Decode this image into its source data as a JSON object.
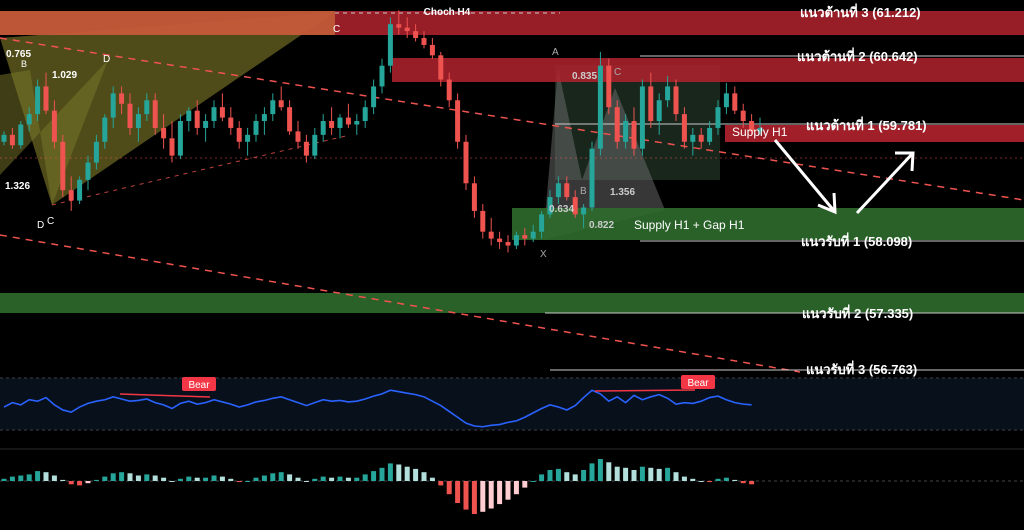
{
  "chart_data": {
    "type": "candlestick",
    "title": "Choch H4",
    "price_axis_range": [
      56.1,
      61.45
    ],
    "levels": [
      {
        "label": "แนวต้านที่ 3 (61.212)",
        "price": 61.212,
        "kind": "resistance"
      },
      {
        "label": "แนวต้านที่ 2 (60.642)",
        "price": 60.642,
        "kind": "resistance"
      },
      {
        "label": "แนวต้านที่ 1 (59.781)",
        "price": 59.781,
        "kind": "resistance"
      },
      {
        "label": "แนวรับที่ 1 (58.098)",
        "price": 58.098,
        "kind": "support"
      },
      {
        "label": "แนวรับที่ 2 (57.335)",
        "price": 57.335,
        "kind": "support"
      },
      {
        "label": "แนวรับที่ 3 (56.763)",
        "price": 56.763,
        "kind": "support"
      }
    ],
    "zones": [
      {
        "label": "Supply H1",
        "kind": "supply",
        "price_low": 59.62,
        "price_high": 59.84
      },
      {
        "label": "Supply H1 + Gap H1",
        "kind": "demand",
        "price_low": 58.16,
        "price_high": 58.5
      }
    ],
    "pattern_labels": [
      "0.765",
      "1.029",
      "1.326",
      "0.835",
      "1.356",
      "0.634",
      "0.822"
    ],
    "pattern_points": [
      "B",
      "D",
      "C",
      "D",
      "C",
      "A",
      "C",
      "B",
      "X"
    ],
    "candles": [
      [
        59.4,
        59.55,
        59.35,
        59.5
      ],
      [
        59.5,
        59.6,
        59.3,
        59.35
      ],
      [
        59.35,
        59.7,
        59.3,
        59.65
      ],
      [
        59.65,
        59.9,
        59.55,
        59.8
      ],
      [
        59.8,
        60.3,
        59.7,
        60.2
      ],
      [
        60.2,
        60.4,
        59.8,
        59.85
      ],
      [
        59.85,
        60.0,
        59.3,
        59.4
      ],
      [
        59.4,
        59.5,
        58.6,
        58.7
      ],
      [
        58.7,
        58.9,
        58.4,
        58.55
      ],
      [
        58.55,
        58.9,
        58.5,
        58.85
      ],
      [
        58.85,
        59.2,
        58.7,
        59.1
      ],
      [
        59.1,
        59.5,
        59.0,
        59.4
      ],
      [
        59.4,
        59.8,
        59.3,
        59.75
      ],
      [
        59.75,
        60.2,
        59.6,
        60.1
      ],
      [
        60.1,
        60.2,
        59.8,
        59.95
      ],
      [
        59.95,
        60.1,
        59.5,
        59.6
      ],
      [
        59.6,
        59.9,
        59.4,
        59.8
      ],
      [
        59.8,
        60.1,
        59.7,
        60.0
      ],
      [
        60.0,
        60.1,
        59.5,
        59.6
      ],
      [
        59.6,
        59.8,
        59.3,
        59.45
      ],
      [
        59.45,
        59.7,
        59.1,
        59.2
      ],
      [
        59.2,
        59.8,
        59.15,
        59.7
      ],
      [
        59.7,
        59.9,
        59.55,
        59.85
      ],
      [
        59.85,
        60.0,
        59.5,
        59.6
      ],
      [
        59.6,
        59.8,
        59.4,
        59.7
      ],
      [
        59.7,
        60.0,
        59.6,
        59.9
      ],
      [
        59.9,
        60.1,
        59.7,
        59.75
      ],
      [
        59.75,
        59.9,
        59.5,
        59.6
      ],
      [
        59.6,
        59.7,
        59.3,
        59.4
      ],
      [
        59.4,
        59.6,
        59.2,
        59.5
      ],
      [
        59.5,
        59.8,
        59.4,
        59.7
      ],
      [
        59.7,
        59.9,
        59.5,
        59.8
      ],
      [
        59.8,
        60.1,
        59.7,
        60.0
      ],
      [
        60.0,
        60.2,
        59.85,
        59.9
      ],
      [
        59.9,
        60.0,
        59.5,
        59.55
      ],
      [
        59.55,
        59.7,
        59.3,
        59.4
      ],
      [
        59.4,
        59.5,
        59.1,
        59.2
      ],
      [
        59.2,
        59.6,
        59.15,
        59.5
      ],
      [
        59.5,
        59.8,
        59.4,
        59.7
      ],
      [
        59.7,
        59.9,
        59.5,
        59.6
      ],
      [
        59.6,
        59.8,
        59.45,
        59.75
      ],
      [
        59.75,
        59.95,
        59.6,
        59.65
      ],
      [
        59.65,
        59.8,
        59.5,
        59.7
      ],
      [
        59.7,
        60.0,
        59.6,
        59.9
      ],
      [
        59.9,
        60.3,
        59.8,
        60.2
      ],
      [
        60.2,
        60.6,
        60.1,
        60.5
      ],
      [
        60.5,
        61.2,
        60.4,
        61.1
      ],
      [
        61.1,
        61.3,
        60.95,
        61.05
      ],
      [
        61.05,
        61.2,
        60.9,
        61.0
      ],
      [
        61.0,
        61.1,
        60.85,
        60.9
      ],
      [
        60.9,
        61.0,
        60.75,
        60.8
      ],
      [
        60.8,
        60.9,
        60.6,
        60.65
      ],
      [
        60.65,
        60.7,
        60.2,
        60.3
      ],
      [
        60.3,
        60.4,
        59.9,
        60.0
      ],
      [
        60.0,
        60.1,
        59.3,
        59.4
      ],
      [
        59.4,
        59.5,
        58.7,
        58.8
      ],
      [
        58.8,
        58.9,
        58.3,
        58.4
      ],
      [
        58.4,
        58.5,
        58.0,
        58.1
      ],
      [
        58.1,
        58.3,
        57.9,
        58.0
      ],
      [
        58.0,
        58.1,
        57.85,
        57.95
      ],
      [
        57.95,
        58.05,
        57.8,
        57.9
      ],
      [
        57.9,
        58.1,
        57.85,
        58.05
      ],
      [
        58.05,
        58.15,
        57.9,
        58.0
      ],
      [
        58.0,
        58.2,
        57.95,
        58.1
      ],
      [
        58.1,
        58.4,
        58.0,
        58.35
      ],
      [
        58.35,
        58.7,
        58.3,
        58.6
      ],
      [
        58.6,
        58.9,
        58.5,
        58.8
      ],
      [
        58.8,
        58.9,
        58.55,
        58.6
      ],
      [
        58.6,
        58.7,
        58.3,
        58.35
      ],
      [
        58.35,
        58.5,
        58.15,
        58.45
      ],
      [
        58.45,
        59.4,
        58.4,
        59.3
      ],
      [
        59.3,
        60.7,
        59.2,
        60.5
      ],
      [
        60.5,
        60.6,
        59.8,
        59.9
      ],
      [
        59.9,
        60.0,
        59.3,
        59.4
      ],
      [
        59.4,
        59.8,
        59.3,
        59.7
      ],
      [
        59.7,
        59.9,
        59.2,
        59.3
      ],
      [
        59.3,
        60.3,
        59.2,
        60.2
      ],
      [
        60.2,
        60.4,
        59.6,
        59.7
      ],
      [
        59.7,
        60.1,
        59.5,
        60.0
      ],
      [
        60.0,
        60.35,
        59.9,
        60.2
      ],
      [
        60.2,
        60.3,
        59.7,
        59.8
      ],
      [
        59.8,
        59.9,
        59.3,
        59.4
      ],
      [
        59.4,
        59.6,
        59.2,
        59.5
      ],
      [
        59.5,
        59.6,
        59.3,
        59.4
      ],
      [
        59.4,
        59.7,
        59.35,
        59.6
      ],
      [
        59.6,
        60.0,
        59.5,
        59.9
      ],
      [
        59.9,
        60.25,
        59.8,
        60.1
      ],
      [
        60.1,
        60.2,
        59.8,
        59.85
      ],
      [
        59.85,
        59.95,
        59.6,
        59.7
      ],
      [
        59.7,
        59.8,
        59.5,
        59.55
      ],
      [
        59.55,
        59.75,
        59.5,
        59.6
      ]
    ],
    "rsi_range": [
      0,
      100
    ],
    "rsi": [
      52,
      58,
      55,
      62,
      60,
      65,
      55,
      48,
      45,
      52,
      57,
      60,
      62,
      66,
      63,
      60,
      61,
      63,
      58,
      55,
      50,
      57,
      60,
      56,
      58,
      62,
      59,
      56,
      52,
      55,
      59,
      61,
      64,
      66,
      62,
      58,
      54,
      58,
      62,
      60,
      61,
      59,
      60,
      63,
      67,
      70,
      75,
      73,
      71,
      69,
      66,
      60,
      54,
      46,
      38,
      30,
      26,
      25,
      27,
      28,
      31,
      33,
      38,
      44,
      50,
      55,
      52,
      48,
      54,
      65,
      75,
      70,
      60,
      66,
      58,
      68,
      62,
      66,
      69,
      64,
      56,
      58,
      57,
      60,
      65,
      67,
      62,
      58,
      56,
      55
    ],
    "macd_hist": [
      0.02,
      0.04,
      0.05,
      0.06,
      0.09,
      0.08,
      0.05,
      0.01,
      -0.03,
      -0.04,
      -0.02,
      0.01,
      0.04,
      0.07,
      0.08,
      0.07,
      0.05,
      0.06,
      0.05,
      0.03,
      0.0,
      0.02,
      0.04,
      0.03,
      0.03,
      0.05,
      0.04,
      0.02,
      -0.01,
      0.0,
      0.03,
      0.05,
      0.07,
      0.08,
      0.06,
      0.03,
      0.0,
      0.02,
      0.04,
      0.03,
      0.04,
      0.03,
      0.03,
      0.06,
      0.09,
      0.12,
      0.16,
      0.15,
      0.13,
      0.11,
      0.08,
      0.03,
      -0.04,
      -0.12,
      -0.2,
      -0.26,
      -0.3,
      -0.28,
      -0.25,
      -0.21,
      -0.17,
      -0.12,
      -0.06,
      0.0,
      0.06,
      0.1,
      0.11,
      0.08,
      0.06,
      0.1,
      0.16,
      0.2,
      0.17,
      0.13,
      0.12,
      0.1,
      0.13,
      0.12,
      0.11,
      0.12,
      0.08,
      0.04,
      0.02,
      0.0,
      -0.01,
      0.02,
      0.03,
      0.01,
      -0.02,
      -0.03
    ],
    "colors": {
      "bull": "#26a69a",
      "bear": "#ef5350",
      "resistance_zone": "#b2222e",
      "support_zone": "#2e6b2e",
      "rsi_line": "#2962ff",
      "bear_label": "#f23645",
      "white_arrow": "#ffffff"
    }
  }
}
